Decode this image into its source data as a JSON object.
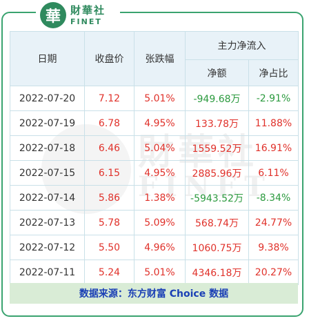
{
  "brand": {
    "badge_char": "華",
    "name_cn": "財華社",
    "name_en": "FINET"
  },
  "table": {
    "headers": {
      "date": "日期",
      "close": "收盘价",
      "change": "张跌幅",
      "main_flow": "主力净流入",
      "net_amount": "净额",
      "net_ratio": "净占比"
    },
    "rows": [
      {
        "date": "2022-07-20",
        "close": "7.12",
        "change": "5.01%",
        "net_amount": "-949.68万",
        "net_ratio": "-2.91%",
        "flow_color": "green"
      },
      {
        "date": "2022-07-19",
        "close": "6.78",
        "change": "4.95%",
        "net_amount": "133.78万",
        "net_ratio": "11.88%",
        "flow_color": "red"
      },
      {
        "date": "2022-07-18",
        "close": "6.46",
        "change": "5.04%",
        "net_amount": "1559.52万",
        "net_ratio": "16.91%",
        "flow_color": "red"
      },
      {
        "date": "2022-07-15",
        "close": "6.15",
        "change": "4.95%",
        "net_amount": "2885.96万",
        "net_ratio": "6.11%",
        "flow_color": "red"
      },
      {
        "date": "2022-07-14",
        "close": "5.86",
        "change": "1.38%",
        "net_amount": "-5943.52万",
        "net_ratio": "-8.34%",
        "flow_color": "green"
      },
      {
        "date": "2022-07-13",
        "close": "5.78",
        "change": "5.09%",
        "net_amount": "568.74万",
        "net_ratio": "24.77%",
        "flow_color": "red"
      },
      {
        "date": "2022-07-12",
        "close": "5.50",
        "change": "4.96%",
        "net_amount": "1060.75万",
        "net_ratio": "9.38%",
        "flow_color": "red"
      },
      {
        "date": "2022-07-11",
        "close": "5.24",
        "change": "5.01%",
        "net_amount": "4346.18万",
        "net_ratio": "20.27%",
        "flow_color": "red"
      }
    ]
  },
  "source": "数据来源：东方财富 Choice 数据",
  "colors": {
    "frame": "#39a36f",
    "red": "#e0312a",
    "green": "#2b9a3e",
    "header_bg": "#e8f2f8",
    "source_bg": "#d9ecd6",
    "source_text": "#1a3fb5"
  },
  "watermark": {
    "cn": "財華社",
    "en": "FINET"
  }
}
